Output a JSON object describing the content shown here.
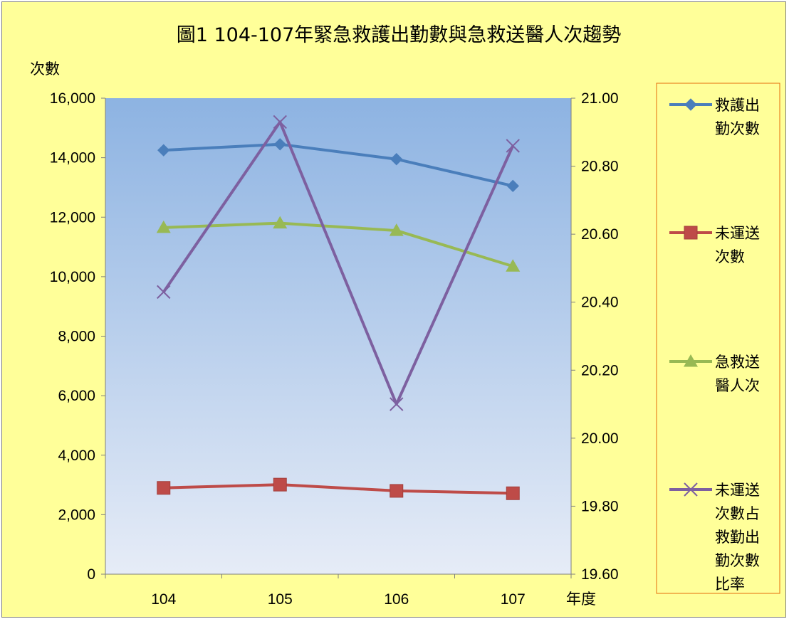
{
  "chart_data": {
    "type": "line",
    "title": "圖1 104-107年緊急救護出勤數與急救送醫人次趨勢",
    "ylabel": "次數",
    "xlabel": "年度",
    "categories": [
      "104",
      "105",
      "106",
      "107"
    ],
    "y_left": {
      "range": [
        0,
        16000
      ],
      "ticks": [
        0,
        2000,
        4000,
        6000,
        8000,
        10000,
        12000,
        14000,
        16000
      ],
      "tick_labels": [
        "0",
        "2,000",
        "4,000",
        "6,000",
        "8,000",
        "10,000",
        "12,000",
        "14,000",
        "16,000"
      ]
    },
    "y_right": {
      "range": [
        19.6,
        21.0
      ],
      "ticks": [
        19.6,
        19.8,
        20.0,
        20.2,
        20.4,
        20.6,
        20.8,
        21.0
      ],
      "tick_labels": [
        "19.60",
        "19.80",
        "20.00",
        "20.20",
        "20.40",
        "20.60",
        "20.80",
        "21.00"
      ]
    },
    "grid": false,
    "legend_position": "right",
    "series": [
      {
        "name": "救護出勤次數",
        "legend_lines": [
          "救護出",
          "勤次數"
        ],
        "axis": "left",
        "marker": "diamond",
        "color": "#4a7ebb",
        "values": [
          14250,
          14450,
          13950,
          13050
        ]
      },
      {
        "name": "未運送次數",
        "legend_lines": [
          "未運送",
          "次數"
        ],
        "axis": "left",
        "marker": "square",
        "color": "#be4b48",
        "values": [
          2900,
          3010,
          2800,
          2720
        ]
      },
      {
        "name": "急救送醫人次",
        "legend_lines": [
          "急救送",
          "醫人次"
        ],
        "axis": "left",
        "marker": "triangle",
        "color": "#98b954",
        "values": [
          11650,
          11800,
          11550,
          10350
        ]
      },
      {
        "name": "未運送次數占救勤出勤次數比率",
        "legend_lines": [
          "未運送",
          "次數占",
          "救勤出",
          "勤次數",
          "比率"
        ],
        "axis": "right",
        "marker": "x",
        "color": "#7d60a0",
        "values": [
          20.43,
          20.93,
          20.1,
          20.86
        ]
      }
    ]
  }
}
